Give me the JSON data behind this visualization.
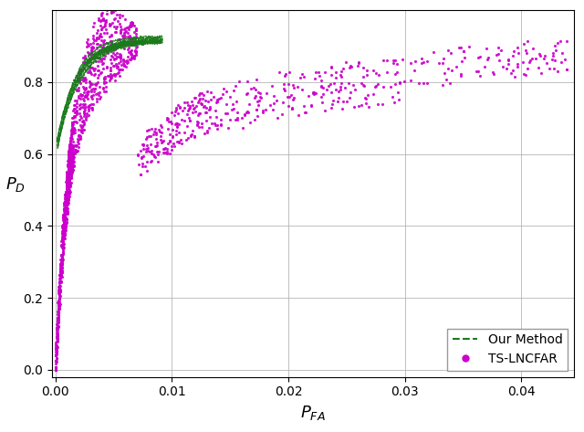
{
  "xlabel": "$P_{FA}$",
  "ylabel": "$P_D$",
  "xlim": [
    -0.0003,
    0.0445
  ],
  "ylim": [
    -0.02,
    1.0
  ],
  "xticks": [
    0.0,
    0.01,
    0.02,
    0.03,
    0.04
  ],
  "yticks": [
    0.0,
    0.2,
    0.4,
    0.6,
    0.8
  ],
  "grid_color": "#b0b0b0",
  "our_method_color": "#1a7a1a",
  "ts_lncfar_color": "#cc00cc",
  "legend_loc": "lower right",
  "figsize": [
    6.4,
    4.73
  ],
  "dpi": 100,
  "num_our_curves": 10,
  "random_seed": 42
}
